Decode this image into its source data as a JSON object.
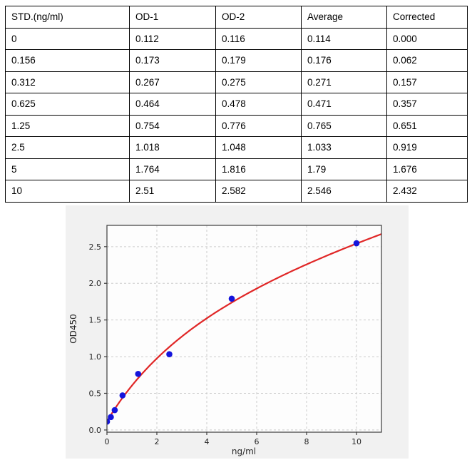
{
  "table": {
    "headers": [
      "STD.(ng/ml)",
      "OD-1",
      "OD-2",
      "Average",
      "Corrected"
    ],
    "rows": [
      [
        "0",
        "0.112",
        "0.116",
        "0.114",
        "0.000"
      ],
      [
        "0.156",
        "0.173",
        "0.179",
        "0.176",
        "0.062"
      ],
      [
        "0.312",
        "0.267",
        "0.275",
        "0.271",
        "0.157"
      ],
      [
        "0.625",
        "0.464",
        "0.478",
        "0.471",
        "0.357"
      ],
      [
        "1.25",
        "0.754",
        "0.776",
        "0.765",
        "0.651"
      ],
      [
        "2.5",
        "1.018",
        "1.048",
        "1.033",
        "0.919"
      ],
      [
        "5",
        "1.764",
        "1.816",
        "1.79",
        "1.676"
      ],
      [
        "10",
        "2.51",
        "2.582",
        "2.546",
        "2.432"
      ]
    ]
  },
  "chart_data": {
    "type": "scatter",
    "title": "",
    "xlabel": "ng/ml",
    "ylabel": "OD450",
    "x": [
      0,
      0.156,
      0.312,
      0.625,
      1.25,
      2.5,
      5,
      10
    ],
    "y": [
      0.114,
      0.176,
      0.271,
      0.471,
      0.765,
      1.033,
      1.79,
      2.546
    ],
    "series": [
      {
        "name": "standard-points",
        "type": "scatter",
        "color": "#1414dc"
      },
      {
        "name": "fit-curve",
        "type": "line",
        "color": "#e02626",
        "fit": {
          "formula": "y = c + a*x/(K+x) + m*x",
          "c": 0.118,
          "a": 2.45,
          "K": 5,
          "m": 0.079,
          "x_range": [
            0,
            11
          ]
        }
      }
    ],
    "x_ticks": [
      0,
      2,
      4,
      6,
      8,
      10
    ],
    "y_ticks": [
      0,
      0.5,
      1,
      1.5,
      2,
      2.5
    ],
    "xlim": [
      0,
      11
    ],
    "ylim": [
      -0.03,
      2.79
    ],
    "grid": "dashed",
    "grid_color": "#cccccc",
    "legend": "none",
    "figure_bg": "#f1f1f1",
    "plot_bg": "#fdfdfd",
    "spine_color": "#3c3c3c",
    "point_radius": 4.3,
    "curve_width": 2.2
  }
}
